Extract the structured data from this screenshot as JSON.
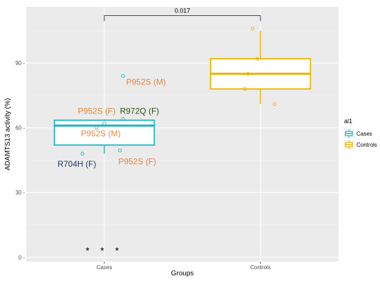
{
  "chart_data": {
    "type": "box",
    "xlabel": "Groups",
    "ylabel": "ADAMTS13 activity (%)",
    "categories": [
      "Cases",
      "Controls"
    ],
    "ylim": [
      -2,
      116
    ],
    "yticks": [
      0,
      30,
      60,
      90
    ],
    "ytick_labels": [
      "0 -",
      "30 -",
      "60 -",
      "90 -"
    ],
    "grid": true,
    "legend": {
      "title": "al1",
      "placement": "right",
      "entries": [
        {
          "label": "Cases",
          "color": "#1fb6c1"
        },
        {
          "label": "Controls",
          "color": "#e8b400"
        }
      ]
    },
    "boxes": [
      {
        "name": "Cases",
        "color": "#1fb6c1",
        "whisker_low": 48,
        "q1": 52,
        "median": 61,
        "q3": 63.5,
        "whisker_high": 64
      },
      {
        "name": "Controls",
        "color": "#e8b400",
        "whisker_low": 71,
        "q1": 78,
        "median": 85,
        "q3": 92,
        "whisker_high": 105
      }
    ],
    "points": [
      {
        "group": "Cases",
        "offset": 0.12,
        "y": 84
      },
      {
        "group": "Cases",
        "offset": 0.0,
        "y": 62
      },
      {
        "group": "Cases",
        "offset": -0.05,
        "y": 60
      },
      {
        "group": "Cases",
        "offset": 0.12,
        "y": 64
      },
      {
        "group": "Cases",
        "offset": 0.1,
        "y": 49.5
      },
      {
        "group": "Cases",
        "offset": -0.14,
        "y": 48
      },
      {
        "group": "Controls",
        "offset": -0.05,
        "y": 106
      },
      {
        "group": "Controls",
        "offset": -0.02,
        "y": 92
      },
      {
        "group": "Controls",
        "offset": -0.08,
        "y": 85
      },
      {
        "group": "Controls",
        "offset": -0.1,
        "y": 78
      },
      {
        "group": "Controls",
        "offset": 0.09,
        "y": 71
      }
    ],
    "annotations": [
      {
        "text": "P952S (M)",
        "group": "Cases",
        "offset": 0.14,
        "y": 80,
        "anchor": "start",
        "color": "#e8853b"
      },
      {
        "text": "P952S (F)",
        "group": "Cases",
        "offset": -0.17,
        "y": 66.5,
        "anchor": "start",
        "color": "#e8853b"
      },
      {
        "text": "R972Q (F)",
        "group": "Cases",
        "offset": 0.1,
        "y": 66.5,
        "anchor": "start",
        "color": "#2d5016"
      },
      {
        "text": "P952S (M)",
        "group": "Cases",
        "offset": -0.15,
        "y": 56,
        "anchor": "start",
        "color": "#e8853b"
      },
      {
        "text": "P952S (F)",
        "group": "Cases",
        "offset": 0.09,
        "y": 43,
        "anchor": "start",
        "color": "#e8853b"
      },
      {
        "text": "R704H (F)",
        "group": "Cases",
        "offset": -0.3,
        "y": 42,
        "anchor": "start",
        "color": "#1f3864"
      }
    ],
    "bracket": {
      "from": "Cases",
      "to": "Controls",
      "y": 112,
      "label": "0.017"
    },
    "stars": {
      "text": "* * *",
      "group": "Cases",
      "y": 1.5
    }
  }
}
